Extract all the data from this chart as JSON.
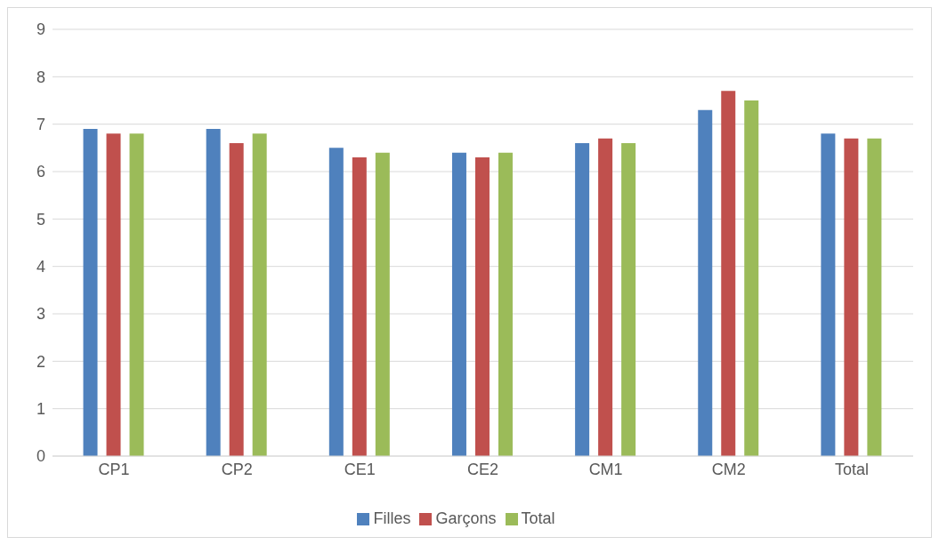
{
  "chart_data": {
    "type": "bar",
    "categories": [
      "CP1",
      "CP2",
      "CE1",
      "CE2",
      "CM1",
      "CM2",
      "Total"
    ],
    "series": [
      {
        "name": "Filles",
        "color": "#4f81bd",
        "values": [
          6.9,
          6.9,
          6.5,
          6.4,
          6.6,
          7.3,
          6.8
        ]
      },
      {
        "name": "Garçons",
        "color": "#c0504d",
        "values": [
          6.8,
          6.6,
          6.3,
          6.3,
          6.7,
          7.7,
          6.7
        ]
      },
      {
        "name": "Total",
        "color": "#9bbb59",
        "values": [
          6.8,
          6.8,
          6.4,
          6.4,
          6.6,
          7.5,
          6.7
        ]
      }
    ],
    "ylim": [
      0,
      9
    ],
    "yticks": [
      0,
      1,
      2,
      3,
      4,
      5,
      6,
      7,
      8,
      9
    ],
    "grid": "y",
    "legend": "bottom"
  }
}
